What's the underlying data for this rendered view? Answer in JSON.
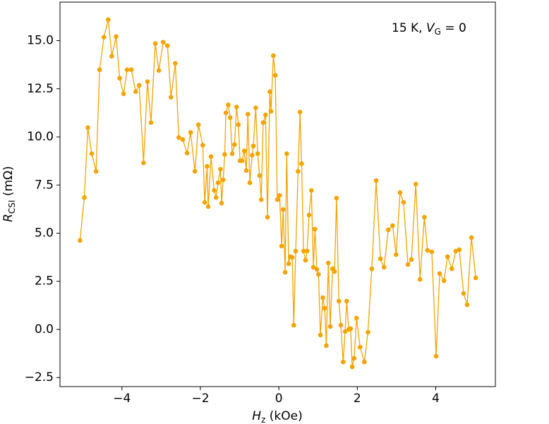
{
  "chart_data": {
    "type": "line",
    "annotation": [
      "15 K, ",
      "V",
      "G",
      " = 0"
    ],
    "xlabel": [
      "H",
      "z",
      " (kOe)"
    ],
    "ylabel": [
      "R",
      "CSI",
      " (mΩ)"
    ],
    "color": "#f5a300",
    "markers": true,
    "xlim": [
      -5.58,
      5.52
    ],
    "ylim": [
      -2.97,
      17.0
    ],
    "xticks": [
      {
        "value": -4,
        "label": "−4"
      },
      {
        "value": -2,
        "label": "−2"
      },
      {
        "value": 0,
        "label": "0"
      },
      {
        "value": 2,
        "label": "2"
      },
      {
        "value": 4,
        "label": "4"
      }
    ],
    "yticks": [
      {
        "value": -2.5,
        "label": "−2.5"
      },
      {
        "value": 0,
        "label": "0.0"
      },
      {
        "value": 2.5,
        "label": "2.5"
      },
      {
        "value": 5,
        "label": "5.0"
      },
      {
        "value": 7.5,
        "label": "7.5"
      },
      {
        "value": 10,
        "label": "10.0"
      },
      {
        "value": 12.5,
        "label": "12.5"
      },
      {
        "value": 15,
        "label": "15.0"
      }
    ],
    "x": [
      -5.07,
      -4.96,
      -4.87,
      -4.77,
      -4.66,
      -4.57,
      -4.46,
      -4.35,
      -4.26,
      -4.15,
      -4.06,
      -3.96,
      -3.87,
      -3.76,
      -3.65,
      -3.56,
      -3.45,
      -3.35,
      -3.26,
      -3.15,
      -3.06,
      -2.95,
      -2.84,
      -2.75,
      -2.64,
      -2.55,
      -2.45,
      -2.34,
      -2.25,
      -2.14,
      -2.05,
      -1.94,
      -1.89,
      -1.83,
      -1.8,
      -1.73,
      -1.65,
      -1.6,
      -1.55,
      -1.49,
      -1.46,
      -1.42,
      -1.38,
      -1.35,
      -1.29,
      -1.24,
      -1.19,
      -1.13,
      -1.08,
      -1.03,
      -0.99,
      -0.94,
      -0.88,
      -0.83,
      -0.79,
      -0.74,
      -0.68,
      -0.65,
      -0.59,
      -0.54,
      -0.49,
      -0.45,
      -0.4,
      -0.34,
      -0.29,
      -0.23,
      -0.2,
      -0.14,
      -0.09,
      -0.04,
      0.02,
      0.07,
      0.11,
      0.16,
      0.2,
      0.25,
      0.29,
      0.34,
      0.38,
      0.43,
      0.49,
      0.54,
      0.58,
      0.63,
      0.68,
      0.72,
      0.77,
      0.83,
      0.88,
      0.92,
      0.97,
      1.01,
      1.06,
      1.12,
      1.17,
      1.21,
      1.26,
      1.31,
      1.37,
      1.42,
      1.47,
      1.53,
      1.58,
      1.64,
      1.69,
      1.73,
      1.78,
      1.83,
      1.87,
      1.92,
      1.98,
      2.07,
      2.18,
      2.27,
      2.37,
      2.48,
      2.59,
      2.68,
      2.79,
      2.9,
      2.99,
      3.09,
      3.18,
      3.29,
      3.38,
      3.49,
      3.6,
      3.71,
      3.79,
      3.9,
      4.01,
      4.1,
      4.21,
      4.3,
      4.41,
      4.51,
      4.6,
      4.71,
      4.8,
      4.91,
      5.02
    ],
    "values": [
      4.62,
      6.85,
      10.48,
      9.13,
      8.21,
      13.49,
      15.18,
      16.09,
      14.19,
      15.21,
      13.05,
      12.24,
      13.49,
      13.49,
      12.35,
      12.68,
      8.65,
      12.87,
      10.74,
      14.85,
      13.45,
      14.92,
      14.74,
      12.06,
      13.82,
      9.97,
      9.86,
      9.16,
      10.23,
      8.21,
      10.63,
      9.57,
      6.6,
      8.47,
      6.38,
      8.98,
      7.22,
      6.85,
      7.62,
      8.32,
      6.56,
      7.77,
      9.09,
      11.25,
      11.66,
      11.0,
      9.13,
      9.6,
      11.55,
      10.63,
      8.76,
      8.76,
      9.27,
      8.25,
      11.18,
      7.62,
      9.05,
      9.53,
      11.51,
      9.13,
      7.99,
      6.74,
      10.74,
      11.14,
      5.83,
      12.35,
      11.33,
      14.22,
      13.2,
      6.74,
      6.96,
      4.33,
      6.23,
      2.97,
      9.13,
      3.41,
      3.78,
      3.74,
      0.22,
      4.07,
      8.21,
      11.29,
      8.61,
      4.07,
      3.59,
      4.07,
      5.94,
      7.22,
      3.23,
      5.21,
      3.12,
      2.86,
      -0.29,
      1.65,
      1.1,
      -0.84,
      3.45,
      0.15,
      3.15,
      3.01,
      6.82,
      1.47,
      0.22,
      -1.69,
      -0.11,
      1.47,
      0.0,
      0.04,
      -1.94,
      -1.5,
      0.59,
      -0.92,
      -1.69,
      -0.15,
      3.15,
      7.73,
      3.67,
      3.23,
      5.17,
      5.39,
      3.89,
      7.11,
      6.6,
      3.37,
      3.63,
      7.55,
      2.6,
      5.83,
      4.11,
      4.03,
      -1.39,
      2.9,
      2.53,
      3.78,
      3.15,
      4.07,
      4.14,
      1.87,
      1.28,
      4.77,
      2.68
    ]
  }
}
